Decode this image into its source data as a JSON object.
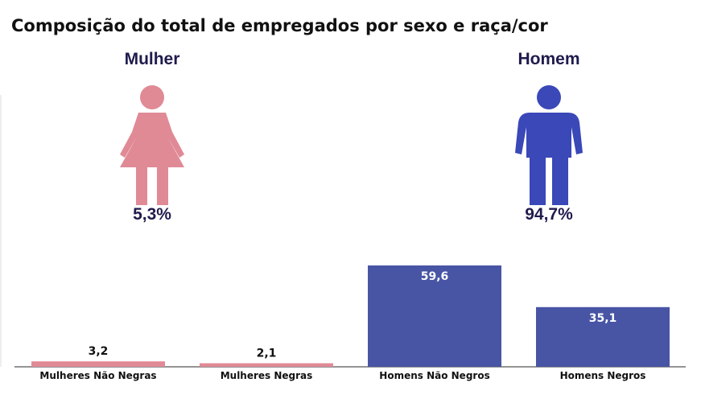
{
  "title": "Composição do total de empregados por sexo e raça/cor",
  "gender": {
    "female": {
      "label": "Mulher",
      "percent_text": "5,3%",
      "percent": 5.3,
      "color": "#e08a96",
      "icon": "woman-icon"
    },
    "male": {
      "label": "Homem",
      "percent_text": "94,7%",
      "percent": 94.7,
      "color": "#3a48b8",
      "icon": "man-icon"
    }
  },
  "chart_data": {
    "type": "bar",
    "title": "",
    "xlabel": "",
    "ylabel": "",
    "categories": [
      "Mulheres Não Negras",
      "Mulheres Negras",
      "Homens Não Negros",
      "Homens Negros"
    ],
    "values": [
      3.2,
      2.1,
      59.6,
      35.1
    ],
    "value_labels": [
      "3,2",
      "2,1",
      "59,6",
      "35,1"
    ],
    "bar_colors": [
      "#e08a96",
      "#e08a96",
      "#4855a5",
      "#4855a5"
    ],
    "ylim": [
      0,
      70
    ],
    "grid": false,
    "legend": "none"
  }
}
